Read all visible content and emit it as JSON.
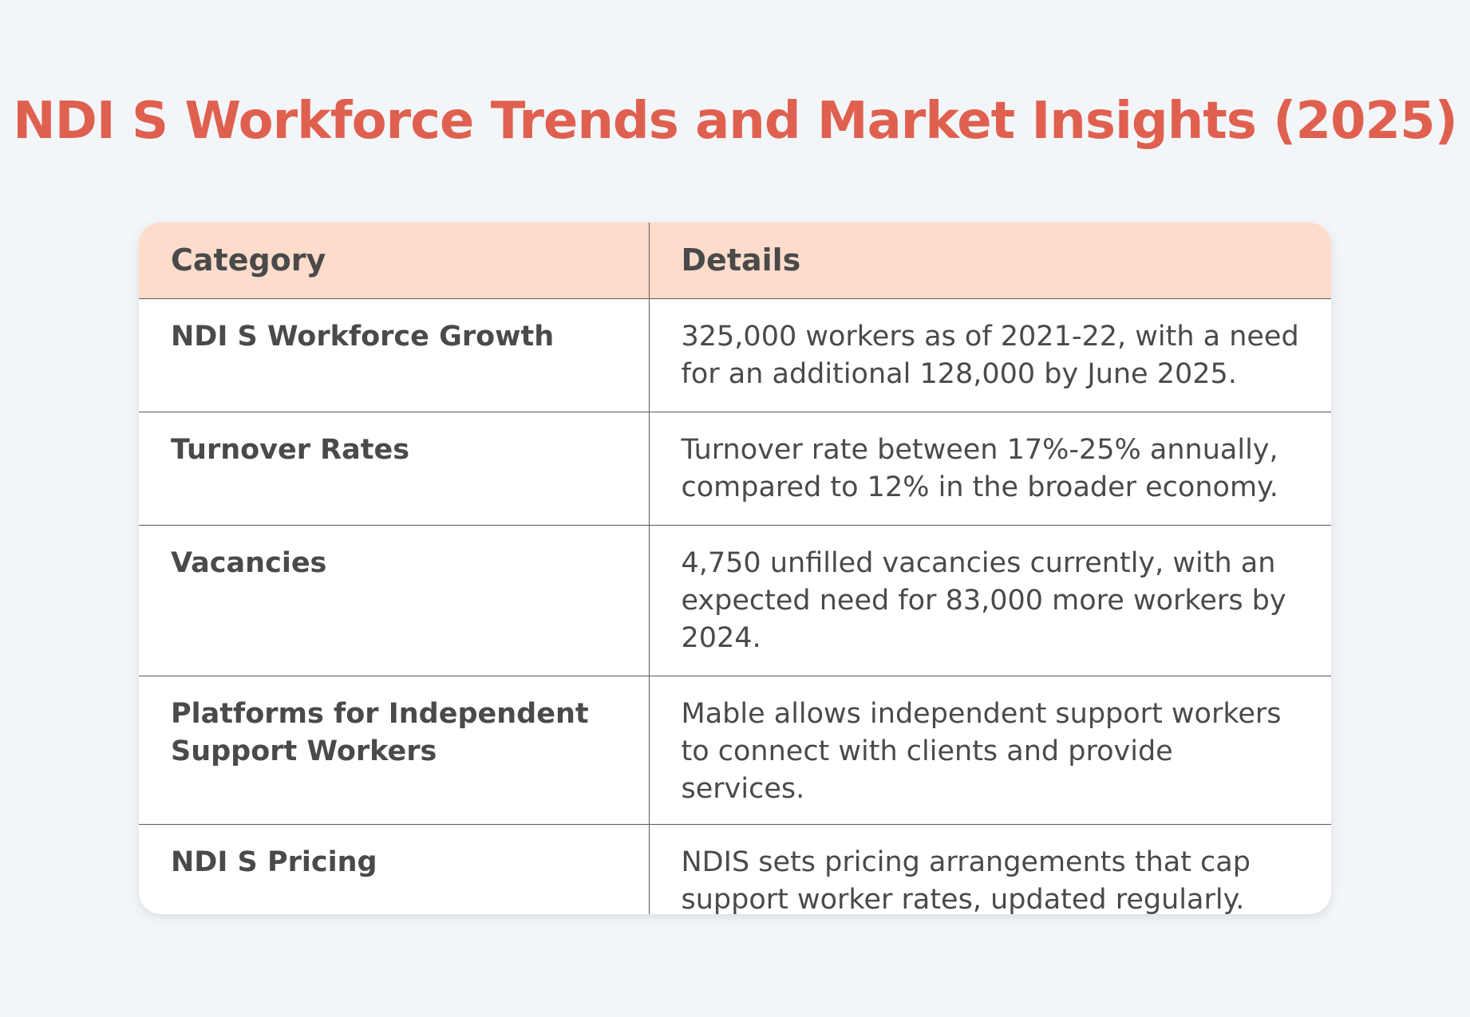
{
  "title": "NDI S Workforce Trends and Market Insights (2025)",
  "table": {
    "headers": [
      "Category",
      "Details"
    ],
    "rows": [
      {
        "category": "NDI S Workforce Growth",
        "details": "325,000 workers as of 2021-22, with a need for an additional 128,000 by June 2025."
      },
      {
        "category": "Turnover Rates",
        "details": "Turnover rate between 17%-25% annually, compared to 12% in the broader economy."
      },
      {
        "category": "Vacancies",
        "details": "4,750 unfilled vacancies currently, with an expected need for 83,000 more workers by 2024."
      },
      {
        "category": "Platforms for Independent Support Workers",
        "details": "Mable allows independent support workers to connect with clients and provide services."
      },
      {
        "category": "NDI S Pricing",
        "details": "NDIS sets pricing arrangements that cap support worker rates, updated regularly."
      }
    ]
  },
  "colors": {
    "title": "#e06050",
    "header_bg": "#fedccb",
    "page_bg": "#f3f6f9",
    "text": "#4a4a4a"
  }
}
